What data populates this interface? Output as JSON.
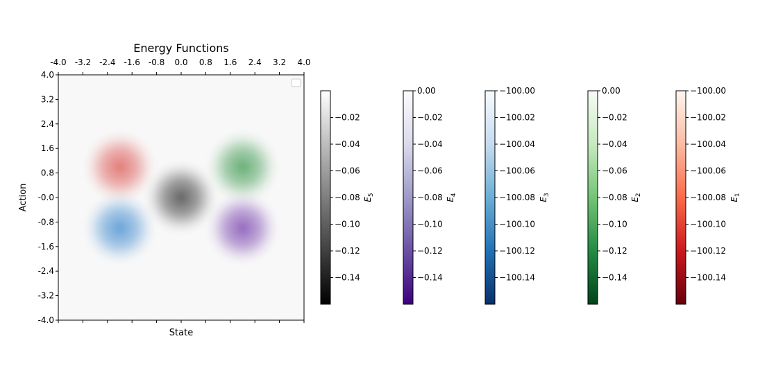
{
  "chart_data": {
    "type": "heatmap",
    "title": "Energy Functions",
    "xlabel": "State",
    "ylabel": "Action",
    "xlim": [
      -4.0,
      4.0
    ],
    "ylim": [
      -4.0,
      4.0
    ],
    "x_tick_labels": [
      "-4.0",
      "-3.2",
      "-2.4",
      "-1.6",
      "-0.8",
      "0.0",
      "0.8",
      "1.6",
      "2.4",
      "3.2",
      "4.0"
    ],
    "y_tick_labels": [
      "4.0",
      "3.2",
      "2.4",
      "1.6",
      "0.8",
      "-0.0",
      "-0.8",
      "-1.6",
      "-2.4",
      "-3.2",
      "-4.0"
    ],
    "grid": false,
    "legend": "top-right",
    "energy_wells": [
      {
        "center": [
          -2.0,
          1.0
        ],
        "color": "#e0706c",
        "colormap": "Reds"
      },
      {
        "center": [
          2.0,
          1.0
        ],
        "color": "#5aa86a",
        "colormap": "Greens"
      },
      {
        "center": [
          0.0,
          0.0
        ],
        "color": "#555555",
        "colormap": "Greys"
      },
      {
        "center": [
          -2.0,
          -1.0
        ],
        "color": "#5b9bd5",
        "colormap": "Blues"
      },
      {
        "center": [
          2.0,
          -1.0
        ],
        "color": "#8a5cb8",
        "colormap": "Purples"
      }
    ],
    "colorbars": [
      {
        "label": "E_5",
        "label_main": "E",
        "label_sub": "5",
        "colormap": "Greys",
        "colors": [
          "#000000",
          "#555555",
          "#a8a8a8",
          "#ffffff"
        ],
        "range": [
          -0.16,
          0.0
        ],
        "tick_labels": [
          "−0.02",
          "−0.04",
          "−0.06",
          "−0.08",
          "−0.10",
          "−0.12",
          "−0.14"
        ]
      },
      {
        "label": "E_4",
        "label_main": "E",
        "label_sub": "4",
        "colormap": "Purples",
        "colors": [
          "#3f007d",
          "#6a51a3",
          "#9e9ac8",
          "#dadaeb",
          "#fcfbfd"
        ],
        "range": [
          -0.16,
          0.0
        ],
        "tick_labels": [
          "0.00",
          "−0.02",
          "−0.04",
          "−0.06",
          "−0.08",
          "−0.10",
          "−0.12",
          "−0.14"
        ]
      },
      {
        "label": "E_3",
        "label_main": "E",
        "label_sub": "3",
        "colormap": "Blues",
        "colors": [
          "#08306b",
          "#2171b5",
          "#6baed6",
          "#c6dbef",
          "#f7fbff"
        ],
        "range": [
          -100.16,
          -100.0
        ],
        "tick_labels": [
          "−100.00",
          "−100.02",
          "−100.04",
          "−100.06",
          "−100.08",
          "−100.10",
          "−100.12",
          "−100.14"
        ]
      },
      {
        "label": "E_2",
        "label_main": "E",
        "label_sub": "2",
        "colormap": "Greens",
        "colors": [
          "#00441b",
          "#238b45",
          "#74c476",
          "#c7e9c0",
          "#f7fcf5"
        ],
        "range": [
          -0.16,
          0.0
        ],
        "tick_labels": [
          "0.00",
          "−0.02",
          "−0.04",
          "−0.06",
          "−0.08",
          "−0.10",
          "−0.12",
          "−0.14"
        ]
      },
      {
        "label": "E_1",
        "label_main": "E",
        "label_sub": "1",
        "colormap": "Reds",
        "colors": [
          "#67000d",
          "#cb181d",
          "#fb6a4a",
          "#fcbba1",
          "#fff5f0"
        ],
        "range": [
          -100.16,
          -100.0
        ],
        "tick_labels": [
          "−100.00",
          "−100.02",
          "−100.04",
          "−100.06",
          "−100.08",
          "−100.10",
          "−100.12",
          "−100.14"
        ]
      }
    ]
  }
}
